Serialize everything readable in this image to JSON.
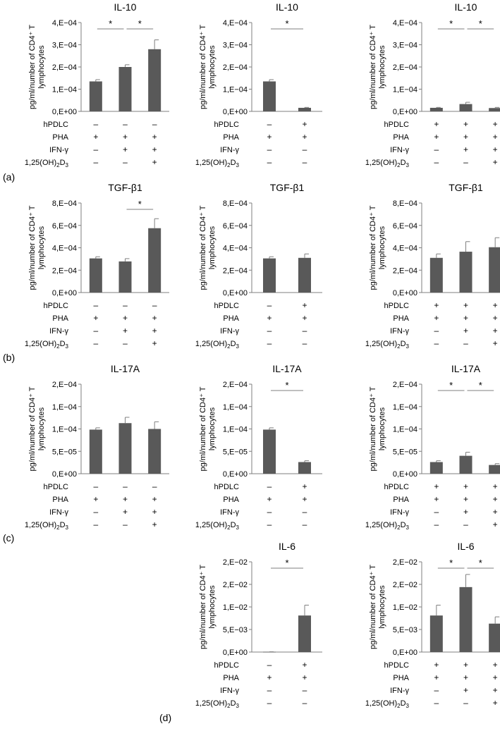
{
  "y_axis_label_line1": "pg/ml/number of CD4⁺ T",
  "y_axis_label_line2": "lymphocytes",
  "condition_labels": {
    "hpdlc": "hPDLC",
    "pha": "PHA",
    "ifn": "IFN-γ",
    "vitd": "1,25(OH)",
    "vitd_sub1": "2",
    "vitd_mid": "D",
    "vitd_sub2": "3"
  },
  "panel_letters": [
    "(a)",
    "(b)",
    "(c)",
    "(d)"
  ],
  "sign_plus": "+",
  "sign_minus": "–",
  "significance_mark": "*",
  "colors": {
    "bar": "#595959",
    "axis": "#7f7f7f",
    "text": "#000000"
  },
  "chart_data": [
    {
      "type": "bar",
      "title": "IL-10",
      "ylim": [
        0,
        0.0004
      ],
      "ticks": [
        0,
        0.0001,
        0.0002,
        0.0003,
        0.0004
      ],
      "tick_labels": [
        "0,E+00",
        "1,E−04",
        "2,E−04",
        "3,E−04",
        "4,E−04"
      ],
      "values": [
        0.000135,
        0.0002,
        0.00028
      ],
      "errors": [
        8e-06,
        1e-05,
        4.2e-05
      ],
      "conditions": {
        "hpdlc": [
          "–",
          "–",
          "–"
        ],
        "pha": [
          "+",
          "+",
          "+"
        ],
        "ifn": [
          "–",
          "+",
          "+"
        ],
        "vitd": [
          "–",
          "–",
          "+"
        ]
      },
      "significance": [
        [
          0,
          1
        ],
        [
          1,
          2
        ]
      ]
    },
    {
      "type": "bar",
      "title": "IL-10",
      "ylim": [
        0,
        0.0004
      ],
      "ticks": [
        0,
        0.0001,
        0.0002,
        0.0003,
        0.0004
      ],
      "tick_labels": [
        "0,E+00",
        "1,E−04",
        "2,E−04",
        "3,E−04",
        "4,E−04"
      ],
      "values": [
        0.000135,
        1.6e-05
      ],
      "errors": [
        8e-06,
        2e-06
      ],
      "conditions": {
        "hpdlc": [
          "–",
          "+"
        ],
        "pha": [
          "+",
          "+"
        ],
        "ifn": [
          "–",
          "–"
        ],
        "vitd": [
          "–",
          "–"
        ]
      },
      "significance": [
        [
          0,
          1
        ]
      ]
    },
    {
      "type": "bar",
      "title": "IL-10",
      "ylim": [
        0,
        0.0004
      ],
      "ticks": [
        0,
        0.0001,
        0.0002,
        0.0003,
        0.0004
      ],
      "tick_labels": [
        "0,E+00",
        "1,E−04",
        "2,E−04",
        "3,E−04",
        "4,E−04"
      ],
      "values": [
        1.6e-05,
        3.3e-05,
        1.5e-05
      ],
      "errors": [
        2e-06,
        8e-06,
        3e-06
      ],
      "conditions": {
        "hpdlc": [
          "+",
          "+",
          "+"
        ],
        "pha": [
          "+",
          "+",
          "+"
        ],
        "ifn": [
          "–",
          "+",
          "+"
        ],
        "vitd": [
          "–",
          "–",
          "+"
        ]
      },
      "significance": [
        [
          0,
          1
        ],
        [
          1,
          2
        ]
      ]
    },
    {
      "type": "bar",
      "title": "TGF-β1",
      "ylim": [
        0,
        0.0008
      ],
      "ticks": [
        0,
        0.0002,
        0.0004,
        0.0006,
        0.0008
      ],
      "tick_labels": [
        "0,E+00",
        "2,E−04",
        "4,E−04",
        "6,E−04",
        "8,E−04"
      ],
      "values": [
        0.000305,
        0.000278,
        0.000575
      ],
      "errors": [
        1.5e-05,
        2.5e-05,
        8.5e-05
      ],
      "conditions": {
        "hpdlc": [
          "–",
          "–",
          "–"
        ],
        "pha": [
          "+",
          "+",
          "+"
        ],
        "ifn": [
          "–",
          "+",
          "+"
        ],
        "vitd": [
          "–",
          "–",
          "+"
        ]
      },
      "significance": [
        [
          1,
          2
        ]
      ]
    },
    {
      "type": "bar",
      "title": "TGF-β1",
      "ylim": [
        0,
        0.0008
      ],
      "ticks": [
        0,
        0.0002,
        0.0004,
        0.0006,
        0.0008
      ],
      "tick_labels": [
        "0,E+00",
        "2,E−04",
        "4,E−04",
        "6,E−04",
        "8,E−04"
      ],
      "values": [
        0.000305,
        0.00031
      ],
      "errors": [
        1.5e-05,
        3.5e-05
      ],
      "conditions": {
        "hpdlc": [
          "–",
          "+"
        ],
        "pha": [
          "+",
          "+"
        ],
        "ifn": [
          "–",
          "–"
        ],
        "vitd": [
          "–",
          "–"
        ]
      },
      "significance": []
    },
    {
      "type": "bar",
      "title": "TGF-β1",
      "ylim": [
        0,
        0.0008
      ],
      "ticks": [
        0,
        0.0002,
        0.0004,
        0.0006,
        0.0008
      ],
      "tick_labels": [
        "0,E+00",
        "2,E−04",
        "4,E−04",
        "6,E−04",
        "8,E−04"
      ],
      "values": [
        0.00031,
        0.000365,
        0.000405
      ],
      "errors": [
        3.5e-05,
        9e-05,
        8.5e-05
      ],
      "conditions": {
        "hpdlc": [
          "+",
          "+",
          "+"
        ],
        "pha": [
          "+",
          "+",
          "+"
        ],
        "ifn": [
          "–",
          "+",
          "+"
        ],
        "vitd": [
          "–",
          "–",
          "+"
        ]
      },
      "significance": []
    },
    {
      "type": "bar",
      "title": "IL-17A",
      "ylim": [
        0,
        0.0002
      ],
      "ticks": [
        0,
        5e-05,
        0.0001,
        0.00015,
        0.0002
      ],
      "tick_labels": [
        "0,E+00",
        "5,E−05",
        "1,E−04",
        "1,E−04",
        "2,E−04"
      ],
      "values": [
        9.85e-05,
        0.000113,
        0.0001
      ],
      "errors": [
        4e-06,
        1.3e-05,
        1.6e-05
      ],
      "conditions": {
        "hpdlc": [
          "–",
          "–",
          "–"
        ],
        "pha": [
          "+",
          "+",
          "+"
        ],
        "ifn": [
          "–",
          "+",
          "+"
        ],
        "vitd": [
          "–",
          "–",
          "+"
        ]
      },
      "significance": []
    },
    {
      "type": "bar",
      "title": "IL-17A",
      "ylim": [
        0,
        0.0002
      ],
      "ticks": [
        0,
        5e-05,
        0.0001,
        0.00015,
        0.0002
      ],
      "tick_labels": [
        "0,E+00",
        "5,E−05",
        "1,E−04",
        "1,E−04",
        "2,E−04"
      ],
      "values": [
        9.85e-05,
        2.6e-05
      ],
      "errors": [
        4e-06,
        3e-06
      ],
      "conditions": {
        "hpdlc": [
          "–",
          "+"
        ],
        "pha": [
          "+",
          "+"
        ],
        "ifn": [
          "–",
          "–"
        ],
        "vitd": [
          "–",
          "–"
        ]
      },
      "significance": [
        [
          0,
          1
        ]
      ]
    },
    {
      "type": "bar",
      "title": "IL-17A",
      "ylim": [
        0,
        0.0002
      ],
      "ticks": [
        0,
        5e-05,
        0.0001,
        0.00015,
        0.0002
      ],
      "tick_labels": [
        "0,E+00",
        "5,E−05",
        "1,E−04",
        "1,E−04",
        "2,E−04"
      ],
      "values": [
        2.6e-05,
        4e-05,
        1.95e-05
      ],
      "errors": [
        3e-06,
        8e-06,
        3e-06
      ],
      "conditions": {
        "hpdlc": [
          "+",
          "+",
          "+"
        ],
        "pha": [
          "+",
          "+",
          "+"
        ],
        "ifn": [
          "–",
          "+",
          "+"
        ],
        "vitd": [
          "–",
          "–",
          "+"
        ]
      },
      "significance": [
        [
          0,
          1
        ],
        [
          1,
          2
        ]
      ]
    },
    {
      "type": "bar",
      "title": "IL-6",
      "ylim": [
        0,
        0.02
      ],
      "ticks": [
        0,
        0.005,
        0.01,
        0.015,
        0.02
      ],
      "tick_labels": [
        "0,E+00",
        "5,E−03",
        "1,E−02",
        "2,E−02",
        "2,E−02"
      ],
      "values": [
        5e-05,
        0.0081
      ],
      "errors": [
        1e-05,
        0.0023
      ],
      "conditions": {
        "hpdlc": [
          "–",
          "+"
        ],
        "pha": [
          "+",
          "+"
        ],
        "ifn": [
          "–",
          "–"
        ],
        "vitd": [
          "–",
          "–"
        ]
      },
      "significance": [
        [
          0,
          1
        ]
      ]
    },
    {
      "type": "bar",
      "title": "IL-6",
      "ylim": [
        0,
        0.02
      ],
      "ticks": [
        0,
        0.005,
        0.01,
        0.015,
        0.02
      ],
      "tick_labels": [
        "0,E+00",
        "5,E−03",
        "1,E−02",
        "2,E−02",
        "2,E−02"
      ],
      "values": [
        0.0081,
        0.0144,
        0.0063
      ],
      "errors": [
        0.0023,
        0.0028,
        0.0015
      ],
      "conditions": {
        "hpdlc": [
          "+",
          "+",
          "+"
        ],
        "pha": [
          "+",
          "+",
          "+"
        ],
        "ifn": [
          "–",
          "+",
          "+"
        ],
        "vitd": [
          "–",
          "–",
          "+"
        ]
      },
      "significance": [
        [
          0,
          1
        ],
        [
          1,
          2
        ]
      ]
    }
  ]
}
